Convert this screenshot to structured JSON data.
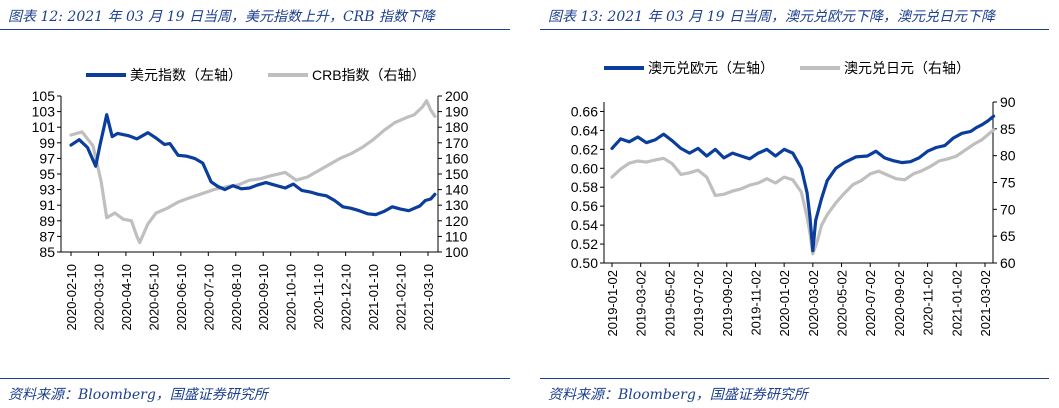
{
  "colors": {
    "dark": "#0b3d9c",
    "light": "#bfbfbf",
    "heading": "#1c3f8f"
  },
  "panels": [
    {
      "title": "图表 12:  2021 年 03 月 19 日当周，美元指数上升，CRB 指数下降",
      "source": "资料来源：Bloomberg，国盛证券研究所"
    },
    {
      "title": "图表 13:  2021 年 03 月 19 日当周，澳元兑欧元下降，澳元兑日元下降",
      "source": "资料来源：Bloomberg，国盛证券研究所"
    }
  ],
  "chart_data": [
    {
      "type": "line",
      "title": "",
      "xlabel": "",
      "ylabel": "",
      "ylabel_right": "",
      "x_ticks": [
        "2020-02-10",
        "2020-03-10",
        "2020-04-10",
        "2020-05-10",
        "2020-06-10",
        "2020-07-10",
        "2020-08-10",
        "2020-09-10",
        "2020-10-10",
        "2020-11-10",
        "2020-12-10",
        "2021-01-10",
        "2021-02-10",
        "2021-03-10"
      ],
      "y_left_ticks": [
        85,
        87,
        89,
        91,
        93,
        95,
        97,
        99,
        101,
        103,
        105
      ],
      "y_right_ticks": [
        100,
        110,
        120,
        130,
        140,
        150,
        160,
        170,
        180,
        190,
        200
      ],
      "ylim_left": [
        85,
        105
      ],
      "ylim_right": [
        100,
        200
      ],
      "legend": [
        "美元指数（左轴）",
        "CRB指数（右轴）"
      ],
      "legend_position": "top",
      "series": [
        {
          "name": "美元指数（左轴）",
          "axis": "left",
          "color": "dark",
          "points": [
            [
              0,
              98.7
            ],
            [
              0.3,
              99.4
            ],
            [
              0.6,
              98.4
            ],
            [
              0.9,
              96.0
            ],
            [
              1.05,
              98.6
            ],
            [
              1.2,
              101.0
            ],
            [
              1.3,
              102.6
            ],
            [
              1.5,
              99.8
            ],
            [
              1.7,
              100.2
            ],
            [
              2.1,
              99.9
            ],
            [
              2.4,
              99.5
            ],
            [
              2.8,
              100.3
            ],
            [
              3.1,
              99.6
            ],
            [
              3.4,
              98.8
            ],
            [
              3.6,
              98.9
            ],
            [
              3.9,
              97.4
            ],
            [
              4.2,
              97.3
            ],
            [
              4.5,
              97.0
            ],
            [
              4.8,
              96.4
            ],
            [
              5.1,
              94.0
            ],
            [
              5.35,
              93.4
            ],
            [
              5.6,
              93.0
            ],
            [
              5.9,
              93.5
            ],
            [
              6.2,
              93.1
            ],
            [
              6.5,
              93.2
            ],
            [
              6.8,
              93.6
            ],
            [
              7.1,
              93.9
            ],
            [
              7.4,
              93.6
            ],
            [
              7.8,
              93.2
            ],
            [
              8.1,
              93.7
            ],
            [
              8.4,
              92.9
            ],
            [
              8.7,
              92.7
            ],
            [
              9.0,
              92.4
            ],
            [
              9.3,
              92.2
            ],
            [
              9.6,
              91.6
            ],
            [
              9.9,
              90.8
            ],
            [
              10.2,
              90.6
            ],
            [
              10.5,
              90.3
            ],
            [
              10.8,
              89.9
            ],
            [
              11.1,
              89.8
            ],
            [
              11.4,
              90.2
            ],
            [
              11.7,
              90.8
            ],
            [
              12.0,
              90.5
            ],
            [
              12.3,
              90.3
            ],
            [
              12.5,
              90.6
            ],
            [
              12.7,
              90.9
            ],
            [
              12.9,
              91.6
            ],
            [
              13.1,
              91.8
            ],
            [
              13.25,
              92.4
            ]
          ]
        },
        {
          "name": "CRB指数（右轴）",
          "axis": "right",
          "color": "light",
          "points": [
            [
              0,
              175
            ],
            [
              0.4,
              177
            ],
            [
              0.8,
              168
            ],
            [
              1.1,
              145
            ],
            [
              1.3,
              122
            ],
            [
              1.6,
              125
            ],
            [
              1.9,
              121
            ],
            [
              2.2,
              120
            ],
            [
              2.4,
              110
            ],
            [
              2.5,
              106
            ],
            [
              2.8,
              118
            ],
            [
              3.1,
              125
            ],
            [
              3.5,
              128
            ],
            [
              3.9,
              132
            ],
            [
              4.2,
              134
            ],
            [
              4.7,
              137
            ],
            [
              5.2,
              140
            ],
            [
              5.7,
              142
            ],
            [
              6.1,
              143
            ],
            [
              6.5,
              146
            ],
            [
              6.9,
              147
            ],
            [
              7.3,
              149
            ],
            [
              7.8,
              151
            ],
            [
              8.2,
              146
            ],
            [
              8.6,
              148
            ],
            [
              9.0,
              152
            ],
            [
              9.4,
              156
            ],
            [
              9.8,
              160
            ],
            [
              10.2,
              163
            ],
            [
              10.6,
              167
            ],
            [
              11.0,
              172
            ],
            [
              11.4,
              178
            ],
            [
              11.8,
              183
            ],
            [
              12.2,
              186
            ],
            [
              12.5,
              188
            ],
            [
              12.8,
              193
            ],
            [
              12.95,
              197
            ],
            [
              13.1,
              191
            ],
            [
              13.25,
              187
            ]
          ]
        }
      ]
    },
    {
      "type": "line",
      "title": "",
      "xlabel": "",
      "ylabel": "",
      "ylabel_right": "",
      "x_ticks": [
        "2019-01-02",
        "2019-03-02",
        "2019-05-02",
        "2019-07-02",
        "2019-09-02",
        "2019-11-02",
        "2020-01-02",
        "2020-03-02",
        "2020-05-02",
        "2020-07-02",
        "2020-09-02",
        "2020-11-02",
        "2021-01-02",
        "2021-03-02"
      ],
      "y_left_ticks": [
        0.5,
        0.52,
        0.54,
        0.56,
        0.58,
        0.6,
        0.62,
        0.64,
        0.66
      ],
      "y_right_ticks": [
        60,
        65,
        70,
        75,
        80,
        85,
        90
      ],
      "ylim_left": [
        0.5,
        0.67
      ],
      "ylim_right": [
        60,
        90
      ],
      "legend": [
        "澳元兑欧元（左轴）",
        "澳元兑日元（右轴）"
      ],
      "legend_position": "top",
      "series": [
        {
          "name": "澳元兑欧元（左轴）",
          "axis": "left",
          "color": "dark",
          "points": [
            [
              0,
              0.621
            ],
            [
              0.3,
              0.631
            ],
            [
              0.6,
              0.628
            ],
            [
              0.9,
              0.633
            ],
            [
              1.2,
              0.627
            ],
            [
              1.5,
              0.63
            ],
            [
              1.8,
              0.636
            ],
            [
              2.1,
              0.629
            ],
            [
              2.4,
              0.621
            ],
            [
              2.7,
              0.616
            ],
            [
              3.0,
              0.621
            ],
            [
              3.3,
              0.613
            ],
            [
              3.6,
              0.62
            ],
            [
              3.9,
              0.611
            ],
            [
              4.2,
              0.616
            ],
            [
              4.5,
              0.613
            ],
            [
              4.8,
              0.61
            ],
            [
              5.1,
              0.616
            ],
            [
              5.4,
              0.62
            ],
            [
              5.7,
              0.613
            ],
            [
              6.0,
              0.62
            ],
            [
              6.3,
              0.616
            ],
            [
              6.6,
              0.6
            ],
            [
              6.8,
              0.574
            ],
            [
              6.9,
              0.548
            ],
            [
              7.0,
              0.513
            ],
            [
              7.1,
              0.545
            ],
            [
              7.3,
              0.568
            ],
            [
              7.5,
              0.587
            ],
            [
              7.8,
              0.6
            ],
            [
              8.1,
              0.606
            ],
            [
              8.5,
              0.612
            ],
            [
              8.9,
              0.613
            ],
            [
              9.2,
              0.618
            ],
            [
              9.5,
              0.611
            ],
            [
              9.8,
              0.608
            ],
            [
              10.1,
              0.606
            ],
            [
              10.4,
              0.607
            ],
            [
              10.7,
              0.611
            ],
            [
              11.0,
              0.618
            ],
            [
              11.3,
              0.622
            ],
            [
              11.6,
              0.624
            ],
            [
              11.9,
              0.632
            ],
            [
              12.2,
              0.637
            ],
            [
              12.5,
              0.639
            ],
            [
              12.7,
              0.643
            ],
            [
              12.9,
              0.646
            ],
            [
              13.1,
              0.65
            ],
            [
              13.3,
              0.655
            ]
          ]
        },
        {
          "name": "澳元兑日元（右轴）",
          "axis": "right",
          "color": "light",
          "points": [
            [
              0,
              76.0
            ],
            [
              0.3,
              77.5
            ],
            [
              0.6,
              78.6
            ],
            [
              0.9,
              79.0
            ],
            [
              1.2,
              78.8
            ],
            [
              1.5,
              79.2
            ],
            [
              1.8,
              79.5
            ],
            [
              2.1,
              78.5
            ],
            [
              2.4,
              76.5
            ],
            [
              2.7,
              76.8
            ],
            [
              3.0,
              77.3
            ],
            [
              3.3,
              76.0
            ],
            [
              3.6,
              72.6
            ],
            [
              3.9,
              72.8
            ],
            [
              4.2,
              73.4
            ],
            [
              4.5,
              73.8
            ],
            [
              4.8,
              74.5
            ],
            [
              5.1,
              74.9
            ],
            [
              5.4,
              75.7
            ],
            [
              5.7,
              74.9
            ],
            [
              6.0,
              76.0
            ],
            [
              6.3,
              75.5
            ],
            [
              6.6,
              73.2
            ],
            [
              6.8,
              68.5
            ],
            [
              6.9,
              65.5
            ],
            [
              7.0,
              61.7
            ],
            [
              7.15,
              64.0
            ],
            [
              7.3,
              67.0
            ],
            [
              7.5,
              69.0
            ],
            [
              7.8,
              71.2
            ],
            [
              8.1,
              73.0
            ],
            [
              8.4,
              74.6
            ],
            [
              8.7,
              75.4
            ],
            [
              9.0,
              76.6
            ],
            [
              9.3,
              77.1
            ],
            [
              9.6,
              76.4
            ],
            [
              9.9,
              75.7
            ],
            [
              10.2,
              75.5
            ],
            [
              10.5,
              76.6
            ],
            [
              10.8,
              77.2
            ],
            [
              11.1,
              78.0
            ],
            [
              11.4,
              79.0
            ],
            [
              11.7,
              79.4
            ],
            [
              12.0,
              79.9
            ],
            [
              12.3,
              81.0
            ],
            [
              12.6,
              82.1
            ],
            [
              12.9,
              83.0
            ],
            [
              13.1,
              83.9
            ],
            [
              13.3,
              84.8
            ]
          ]
        }
      ]
    }
  ]
}
